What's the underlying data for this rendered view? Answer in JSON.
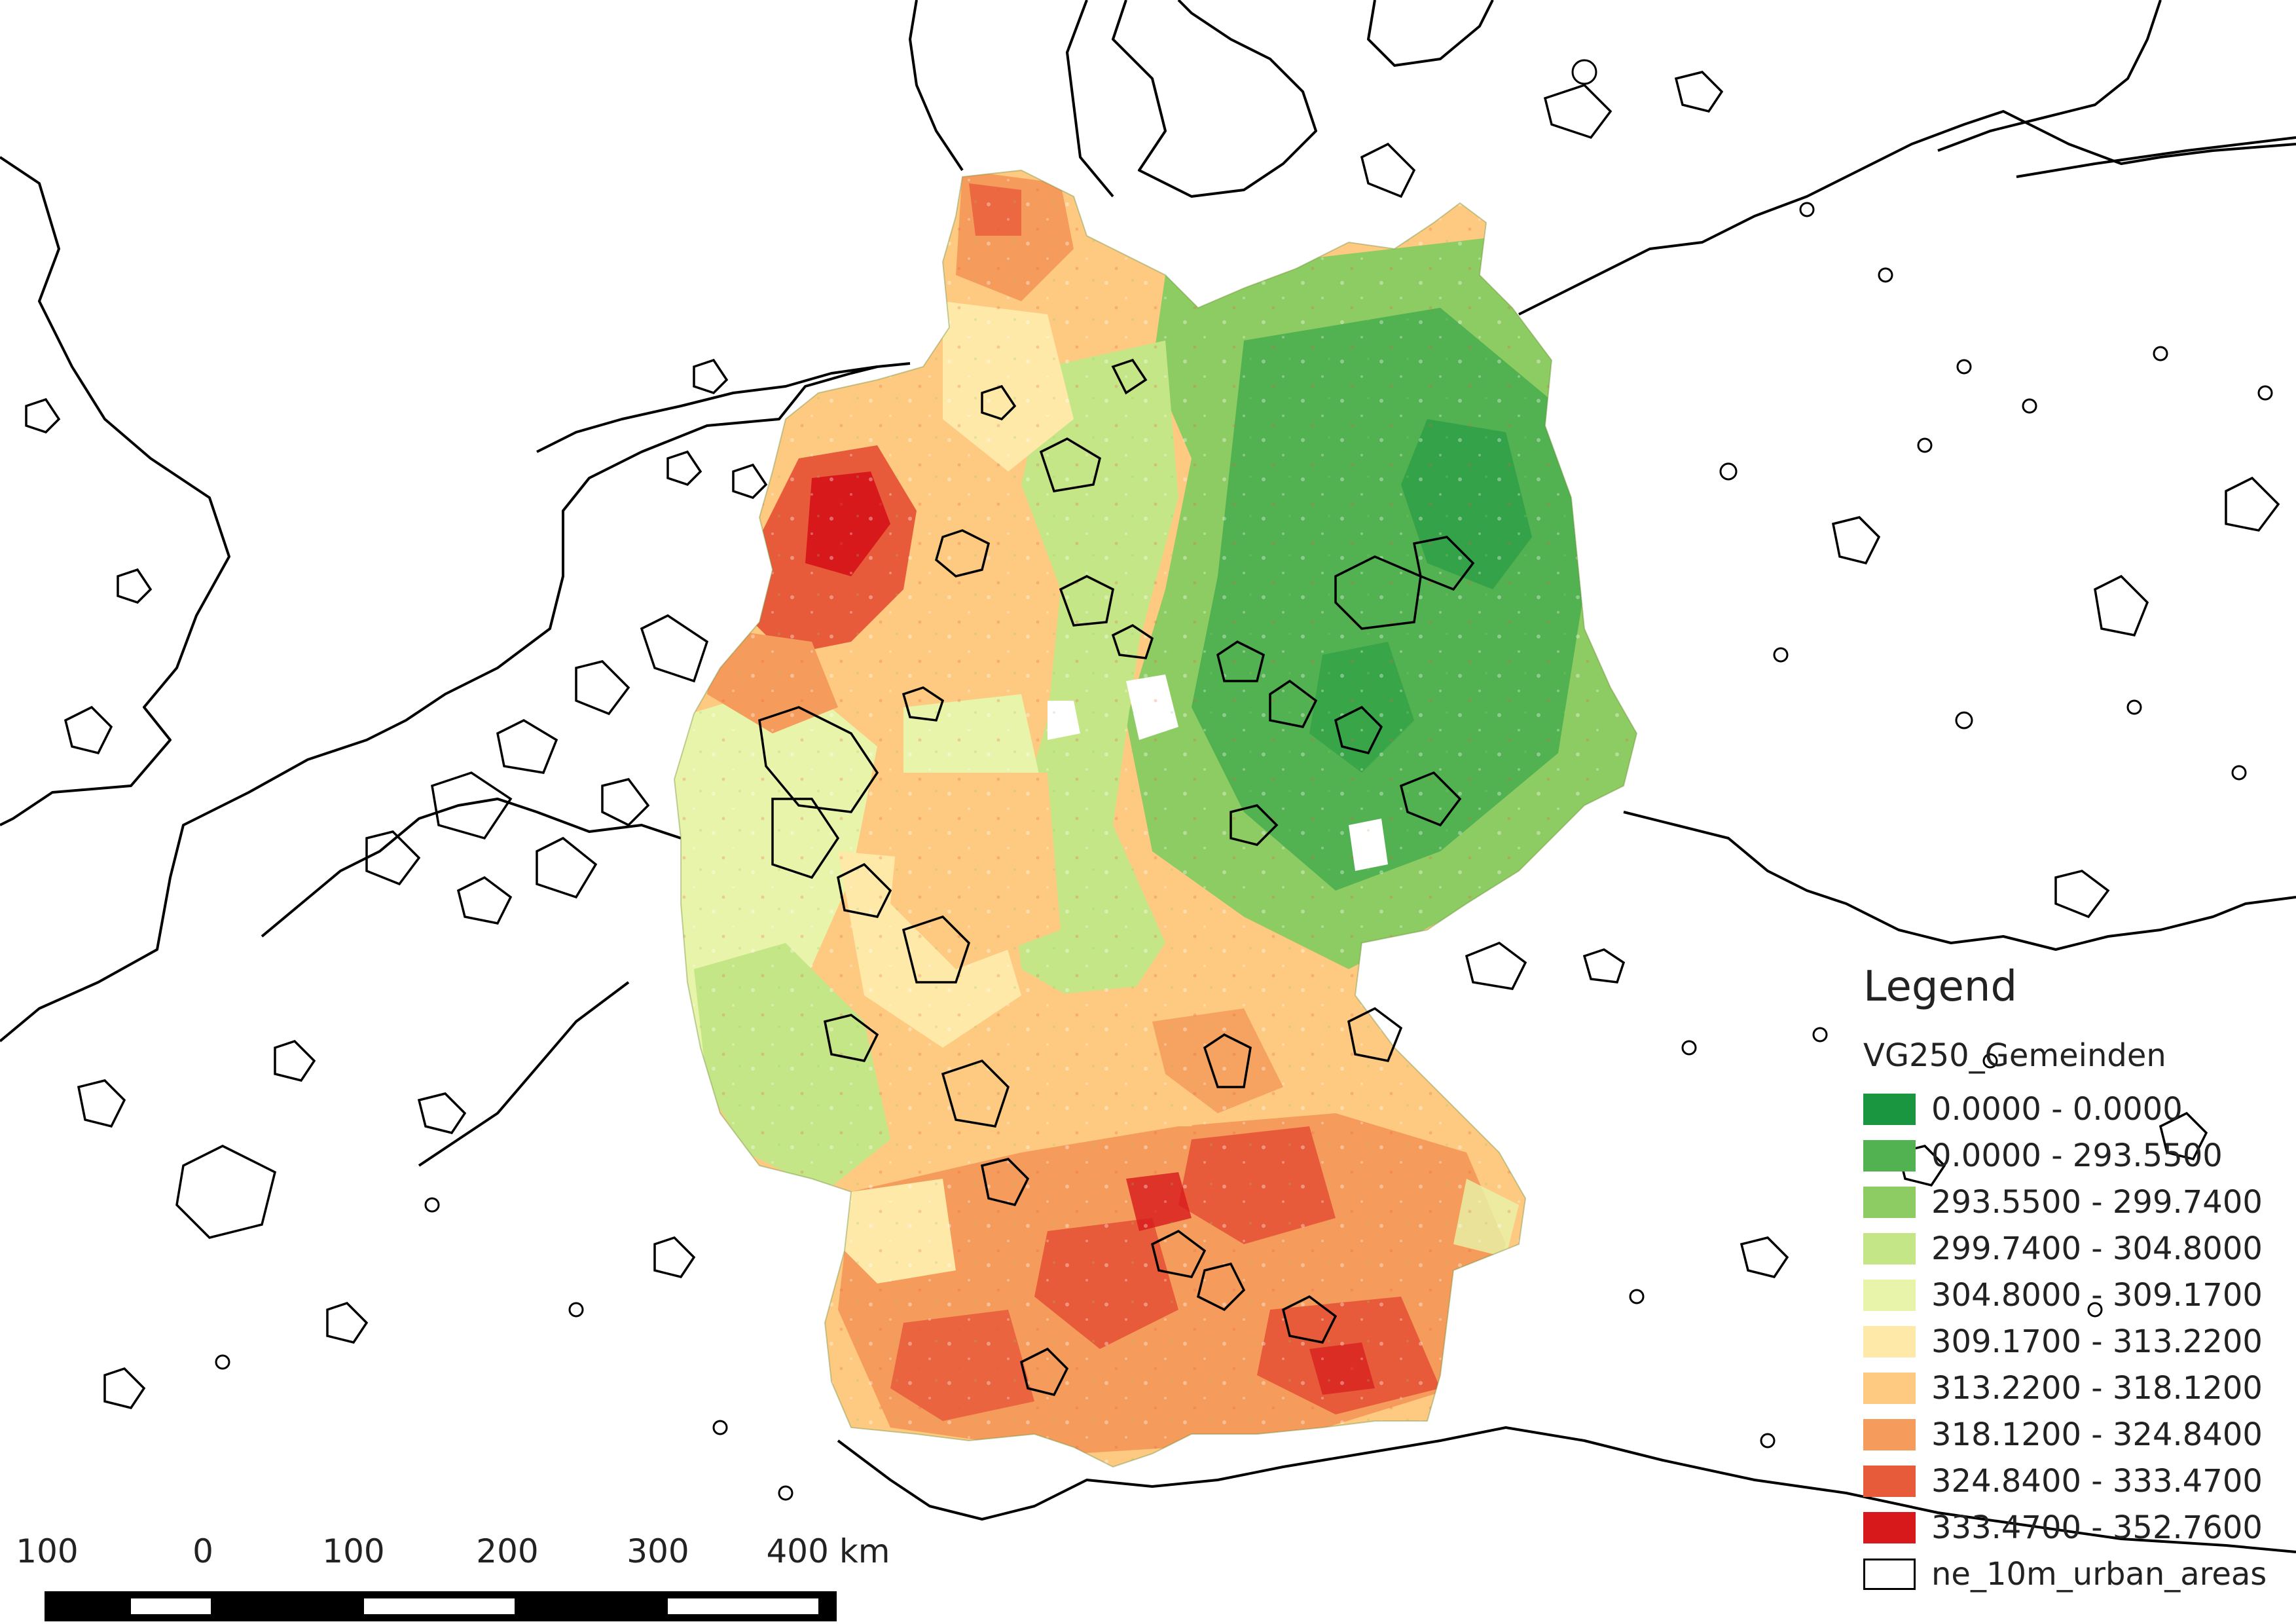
{
  "legend": {
    "title": "Legend",
    "layer": "VG250_Gemeinden",
    "classes": [
      {
        "label": "0.0000 - 0.0000",
        "color": "#1a9641"
      },
      {
        "label": "0.0000 - 293.5500",
        "color": "#52b151"
      },
      {
        "label": "293.5500 - 299.7400",
        "color": "#8ccc62"
      },
      {
        "label": "299.7400 - 304.8000",
        "color": "#c4e687"
      },
      {
        "label": "304.8000 - 309.1700",
        "color": "#e8f4a9"
      },
      {
        "label": "309.1700 - 313.2200",
        "color": "#fee9a9"
      },
      {
        "label": "313.2200 - 318.1200",
        "color": "#fec980"
      },
      {
        "label": "318.1200 - 324.8400",
        "color": "#f59b5c"
      },
      {
        "label": "324.8400 - 333.4700",
        "color": "#e85b3a"
      },
      {
        "label": "333.4700 - 352.7600",
        "color": "#d7191c"
      }
    ],
    "outline_item": {
      "label": "ne_10m_urban_areas",
      "color": "#ffffff"
    }
  },
  "scalebar": {
    "labels": [
      "100",
      "0",
      "100",
      "200",
      "300",
      "400 km"
    ]
  },
  "map": {
    "outline_color": "#000000",
    "background": "#ffffff"
  }
}
